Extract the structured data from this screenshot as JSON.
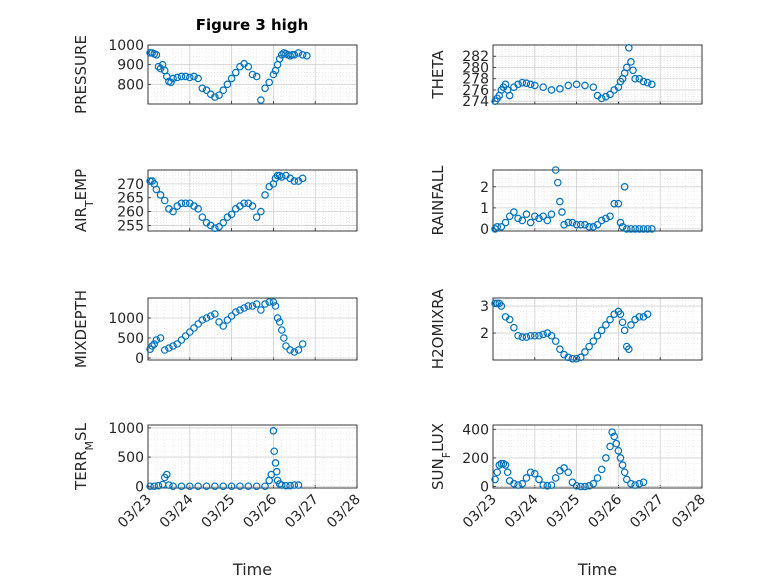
{
  "figure_title": "Figure 3 high",
  "chart_data": [
    {
      "type": "scatter",
      "title": "Figure 3 high",
      "ylabel": "PRESSURE",
      "xlabel": "",
      "xlim": [
        0,
        5
      ],
      "ylim": [
        700,
        1000
      ],
      "yticks": [
        800,
        900,
        1000
      ],
      "xticks": [
        "03/23",
        "03/24",
        "03/25",
        "03/26",
        "03/27",
        "03/28"
      ],
      "x": [
        0.05,
        0.1,
        0.15,
        0.2,
        0.25,
        0.3,
        0.35,
        0.4,
        0.45,
        0.5,
        0.55,
        0.6,
        0.7,
        0.8,
        0.9,
        1.0,
        1.1,
        1.2,
        1.3,
        1.4,
        1.5,
        1.6,
        1.7,
        1.8,
        1.9,
        2.0,
        2.1,
        2.2,
        2.3,
        2.4,
        2.5,
        2.6,
        2.7,
        2.8,
        2.9,
        3.0,
        3.05,
        3.1,
        3.15,
        3.2,
        3.25,
        3.3,
        3.35,
        3.4,
        3.45,
        3.5,
        3.6,
        3.7,
        3.8
      ],
      "y": [
        960,
        960,
        955,
        950,
        890,
        880,
        900,
        870,
        840,
        815,
        810,
        830,
        835,
        840,
        840,
        835,
        840,
        830,
        780,
        770,
        750,
        735,
        745,
        770,
        800,
        830,
        860,
        890,
        905,
        890,
        850,
        840,
        720,
        780,
        810,
        850,
        870,
        900,
        930,
        950,
        960,
        955,
        950,
        945,
        950,
        950,
        960,
        950,
        945
      ]
    },
    {
      "type": "scatter",
      "ylabel": "THETA",
      "xlim": [
        0,
        5
      ],
      "ylim": [
        273.5,
        284
      ],
      "yticks": [
        274,
        276,
        278,
        280,
        282
      ],
      "xticks": [
        "03/23",
        "03/24",
        "03/25",
        "03/26",
        "03/27",
        "03/28"
      ],
      "x": [
        0.05,
        0.1,
        0.15,
        0.2,
        0.25,
        0.3,
        0.35,
        0.4,
        0.5,
        0.6,
        0.7,
        0.8,
        0.9,
        1.0,
        1.2,
        1.4,
        1.6,
        1.8,
        2.0,
        2.2,
        2.4,
        2.5,
        2.6,
        2.7,
        2.8,
        2.9,
        3.0,
        3.05,
        3.1,
        3.15,
        3.2,
        3.25,
        3.3,
        3.35,
        3.4,
        3.5,
        3.6,
        3.7,
        3.8
      ],
      "y": [
        274,
        274.5,
        275,
        276,
        276.5,
        277,
        276,
        275,
        276.5,
        277,
        277.3,
        277.2,
        277,
        276.8,
        276.5,
        276,
        276.2,
        276.8,
        277,
        276.8,
        276.5,
        275,
        274.5,
        274.8,
        275.2,
        276,
        276.5,
        277.5,
        278,
        279,
        280,
        283.5,
        281,
        279.5,
        278,
        278,
        277.5,
        277.3,
        277
      ]
    },
    {
      "type": "scatter",
      "ylabel": "AIR_TEMP",
      "xlim": [
        0,
        5
      ],
      "ylim": [
        253,
        275
      ],
      "yticks": [
        255,
        260,
        265,
        270
      ],
      "xticks": [
        "03/23",
        "03/24",
        "03/25",
        "03/26",
        "03/27",
        "03/28"
      ],
      "x": [
        0.05,
        0.1,
        0.15,
        0.2,
        0.3,
        0.4,
        0.5,
        0.6,
        0.7,
        0.8,
        0.9,
        1.0,
        1.1,
        1.2,
        1.3,
        1.4,
        1.5,
        1.6,
        1.7,
        1.8,
        1.9,
        2.0,
        2.1,
        2.2,
        2.3,
        2.4,
        2.5,
        2.6,
        2.7,
        2.8,
        2.9,
        3.0,
        3.05,
        3.1,
        3.15,
        3.2,
        3.3,
        3.4,
        3.5,
        3.6,
        3.7
      ],
      "y": [
        271,
        271,
        270,
        268,
        266,
        264,
        261,
        260,
        262,
        263,
        263,
        263,
        262,
        261,
        258,
        256,
        255,
        254,
        254.5,
        256,
        258,
        259,
        261,
        262,
        263,
        263,
        262,
        258,
        260,
        266,
        269,
        270,
        272,
        273,
        273,
        272.5,
        273,
        272,
        271,
        271,
        272
      ]
    },
    {
      "type": "scatter",
      "ylabel": "RAINFALL",
      "xlim": [
        0,
        5
      ],
      "ylim": [
        -0.1,
        2.8
      ],
      "yticks": [
        0,
        1,
        2
      ],
      "xticks": [
        "03/23",
        "03/24",
        "03/25",
        "03/26",
        "03/27",
        "03/28"
      ],
      "x": [
        0.05,
        0.1,
        0.2,
        0.3,
        0.4,
        0.5,
        0.6,
        0.7,
        0.8,
        0.9,
        1.0,
        1.1,
        1.2,
        1.3,
        1.4,
        1.5,
        1.55,
        1.6,
        1.65,
        1.7,
        1.8,
        1.9,
        2.0,
        2.1,
        2.2,
        2.3,
        2.4,
        2.5,
        2.6,
        2.7,
        2.8,
        2.9,
        3.0,
        3.05,
        3.1,
        3.15,
        3.2,
        3.3,
        3.4,
        3.5,
        3.6,
        3.7,
        3.8
      ],
      "y": [
        0,
        0.1,
        0.1,
        0.3,
        0.6,
        0.8,
        0.5,
        0.4,
        0.7,
        0.3,
        0.6,
        0.5,
        0.6,
        0.4,
        0.7,
        2.8,
        2.2,
        1.3,
        0.8,
        0.2,
        0.3,
        0.3,
        0.2,
        0.2,
        0.2,
        0.1,
        0.1,
        0.2,
        0.4,
        0.5,
        0.6,
        1.2,
        1.2,
        0.3,
        0.1,
        2.0,
        0.0,
        0.0,
        0.0,
        0.0,
        0.0,
        0.0,
        0.0
      ]
    },
    {
      "type": "scatter",
      "ylabel": "MIXDEPTH",
      "xlim": [
        0,
        5
      ],
      "ylim": [
        -50,
        1500
      ],
      "yticks": [
        0,
        500,
        1000
      ],
      "xticks": [
        "03/23",
        "03/24",
        "03/25",
        "03/26",
        "03/27",
        "03/28"
      ],
      "x": [
        0.05,
        0.1,
        0.15,
        0.2,
        0.3,
        0.4,
        0.5,
        0.6,
        0.7,
        0.8,
        0.9,
        1.0,
        1.1,
        1.2,
        1.3,
        1.4,
        1.5,
        1.6,
        1.7,
        1.8,
        1.9,
        2.0,
        2.1,
        2.2,
        2.3,
        2.4,
        2.5,
        2.6,
        2.7,
        2.8,
        2.9,
        3.0,
        3.05,
        3.1,
        3.15,
        3.2,
        3.25,
        3.3,
        3.4,
        3.5,
        3.6,
        3.7
      ],
      "y": [
        220,
        300,
        350,
        450,
        500,
        200,
        250,
        300,
        350,
        450,
        550,
        650,
        750,
        850,
        950,
        1000,
        1050,
        1100,
        900,
        800,
        950,
        1050,
        1150,
        1200,
        1250,
        1300,
        1300,
        1350,
        1200,
        1350,
        1400,
        1400,
        1300,
        1000,
        900,
        700,
        500,
        300,
        200,
        150,
        200,
        350
      ]
    },
    {
      "type": "scatter",
      "ylabel": "H2OMIXRA",
      "xlim": [
        0,
        5
      ],
      "ylim": [
        1.0,
        3.3
      ],
      "yticks": [
        2,
        3
      ],
      "xticks": [
        "03/23",
        "03/24",
        "03/25",
        "03/26",
        "03/27",
        "03/28"
      ],
      "x": [
        0.05,
        0.1,
        0.15,
        0.2,
        0.3,
        0.4,
        0.5,
        0.6,
        0.7,
        0.8,
        0.9,
        1.0,
        1.1,
        1.2,
        1.3,
        1.4,
        1.5,
        1.6,
        1.7,
        1.8,
        1.9,
        2.0,
        2.1,
        2.2,
        2.3,
        2.4,
        2.5,
        2.6,
        2.7,
        2.8,
        2.9,
        3.0,
        3.05,
        3.1,
        3.15,
        3.2,
        3.25,
        3.3,
        3.4,
        3.5,
        3.6,
        3.7
      ],
      "y": [
        3.1,
        3.1,
        3.1,
        3.0,
        2.6,
        2.5,
        2.2,
        1.9,
        1.85,
        1.85,
        1.9,
        1.9,
        1.9,
        1.95,
        2.0,
        1.9,
        1.7,
        1.4,
        1.2,
        1.1,
        1.05,
        1.05,
        1.1,
        1.3,
        1.5,
        1.7,
        1.9,
        2.1,
        2.3,
        2.5,
        2.7,
        2.8,
        2.7,
        2.4,
        2.1,
        1.5,
        1.4,
        2.3,
        2.5,
        2.6,
        2.6,
        2.7
      ]
    },
    {
      "type": "scatter",
      "ylabel": "TERR_MSL",
      "xlabel": "Time",
      "xlim": [
        0,
        5
      ],
      "ylim": [
        -30,
        1050
      ],
      "yticks": [
        0,
        500,
        1000
      ],
      "xticks": [
        "03/23",
        "03/24",
        "03/25",
        "03/26",
        "03/27",
        "03/28"
      ],
      "x": [
        0.05,
        0.15,
        0.25,
        0.35,
        0.4,
        0.45,
        0.5,
        0.6,
        0.8,
        1.0,
        1.2,
        1.4,
        1.6,
        1.8,
        2.0,
        2.2,
        2.4,
        2.6,
        2.8,
        2.9,
        2.95,
        3.0,
        3.02,
        3.05,
        3.08,
        3.1,
        3.15,
        3.2,
        3.3,
        3.4,
        3.5,
        3.6
      ],
      "y": [
        0,
        0,
        10,
        30,
        150,
        200,
        20,
        0,
        0,
        0,
        0,
        0,
        0,
        0,
        0,
        0,
        0,
        0,
        0,
        100,
        200,
        950,
        600,
        400,
        250,
        100,
        40,
        20,
        10,
        10,
        20,
        20
      ]
    },
    {
      "type": "scatter",
      "ylabel": "SUN_FLUX",
      "xlabel": "Time",
      "xlim": [
        0,
        5
      ],
      "ylim": [
        -10,
        430
      ],
      "yticks": [
        0,
        200,
        400
      ],
      "xticks": [
        "03/23",
        "03/24",
        "03/25",
        "03/26",
        "03/27",
        "03/28"
      ],
      "x": [
        0.05,
        0.1,
        0.15,
        0.2,
        0.25,
        0.3,
        0.35,
        0.4,
        0.5,
        0.6,
        0.7,
        0.8,
        0.9,
        1.0,
        1.1,
        1.2,
        1.3,
        1.4,
        1.5,
        1.6,
        1.7,
        1.8,
        1.9,
        2.0,
        2.1,
        2.2,
        2.3,
        2.4,
        2.5,
        2.6,
        2.7,
        2.8,
        2.85,
        2.9,
        2.95,
        3.0,
        3.05,
        3.1,
        3.15,
        3.2,
        3.3,
        3.4,
        3.5,
        3.6
      ],
      "y": [
        50,
        100,
        150,
        160,
        160,
        150,
        100,
        40,
        20,
        10,
        20,
        60,
        100,
        90,
        50,
        10,
        5,
        10,
        60,
        110,
        130,
        100,
        30,
        5,
        0,
        0,
        5,
        20,
        60,
        120,
        200,
        280,
        380,
        350,
        300,
        250,
        200,
        150,
        100,
        50,
        20,
        10,
        20,
        30
      ]
    }
  ]
}
